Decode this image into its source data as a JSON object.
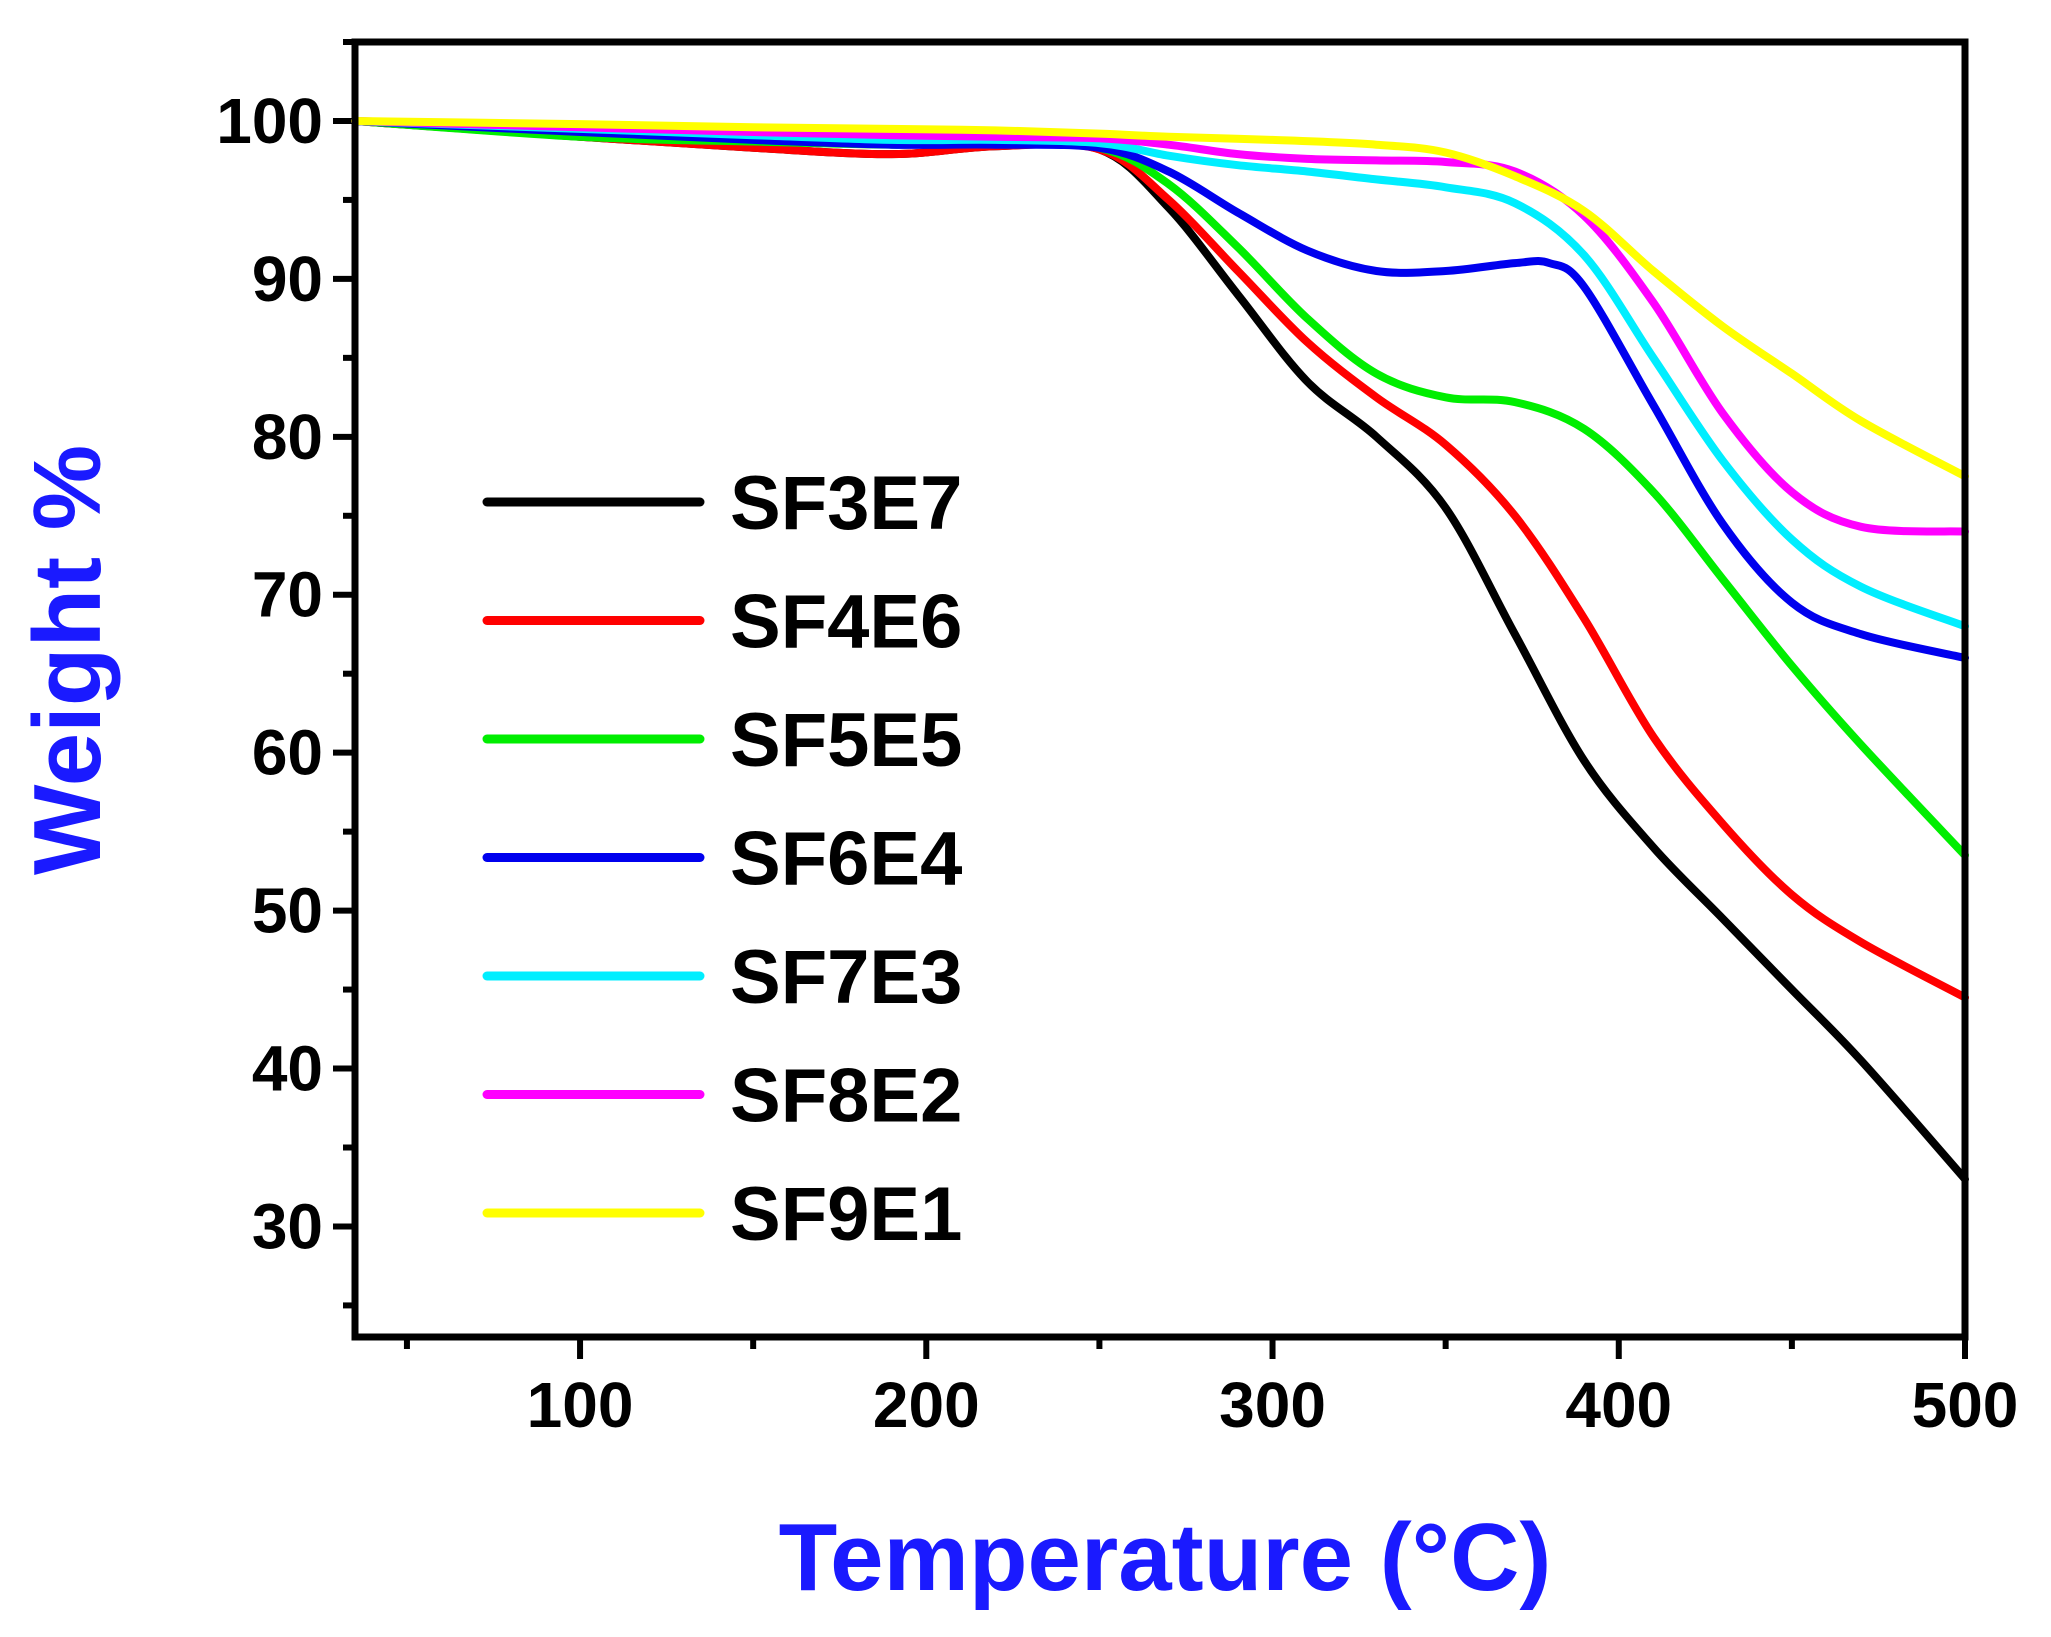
{
  "chart_data": {
    "type": "line",
    "xlabel": "Temperature (°C)",
    "ylabel": "Weight %",
    "xlim": [
      35,
      500
    ],
    "ylim": [
      23,
      105
    ],
    "xticks": [
      100,
      200,
      300,
      400,
      500
    ],
    "yticks": [
      30,
      40,
      50,
      60,
      70,
      80,
      90,
      100
    ],
    "x_minor_step": 50,
    "y_minor_step": 5,
    "grid": false,
    "legend_position": "left",
    "label_color": "#1a1aff",
    "series": [
      {
        "name": "SF3E7",
        "color": "#000000",
        "x": [
          35,
          100,
          150,
          190,
          220,
          250,
          270,
          290,
          310,
          330,
          350,
          370,
          390,
          410,
          430,
          450,
          470,
          500
        ],
        "y": [
          100,
          99,
          98.3,
          97.9,
          98.4,
          98.2,
          94.5,
          89,
          83.5,
          80,
          75.5,
          67.5,
          59.5,
          54,
          49.5,
          45,
          40.5,
          33
        ]
      },
      {
        "name": "SF4E6",
        "color": "#ff0000",
        "x": [
          35,
          100,
          150,
          190,
          220,
          250,
          270,
          290,
          310,
          330,
          350,
          370,
          390,
          410,
          430,
          450,
          470,
          500
        ],
        "y": [
          100,
          99,
          98.3,
          97.9,
          98.4,
          98.2,
          95,
          90.5,
          86,
          82.5,
          79.5,
          75,
          68.5,
          61,
          55.5,
          51,
          48,
          44.5
        ]
      },
      {
        "name": "SF5E5",
        "color": "#00ee00",
        "x": [
          35,
          100,
          150,
          190,
          220,
          250,
          270,
          290,
          310,
          330,
          350,
          370,
          390,
          410,
          430,
          450,
          470,
          500
        ],
        "y": [
          100,
          99,
          98.7,
          98.5,
          98.6,
          98.3,
          96,
          92,
          87.5,
          84,
          82.5,
          82.2,
          80.5,
          76.5,
          71,
          65.5,
          60.5,
          53.5
        ]
      },
      {
        "name": "SF6E4",
        "color": "#0000ee",
        "x": [
          35,
          100,
          150,
          190,
          220,
          250,
          270,
          290,
          310,
          330,
          350,
          370,
          380,
          390,
          410,
          430,
          450,
          470,
          500
        ],
        "y": [
          100,
          99.3,
          98.8,
          98.5,
          98.5,
          98.3,
          96.8,
          94.2,
          91.8,
          90.5,
          90.5,
          91,
          91,
          89.5,
          82,
          74.5,
          69.5,
          67.5,
          66
        ]
      },
      {
        "name": "SF7E3",
        "color": "#00eeff",
        "x": [
          35,
          100,
          150,
          190,
          220,
          250,
          270,
          290,
          310,
          330,
          350,
          370,
          390,
          410,
          430,
          450,
          470,
          500
        ],
        "y": [
          100,
          99.5,
          99.1,
          98.8,
          98.8,
          98.6,
          97.8,
          97.2,
          96.8,
          96.3,
          95.8,
          94.8,
          91.5,
          85,
          78.5,
          73.5,
          70.5,
          68
        ]
      },
      {
        "name": "SF8E2",
        "color": "#ff00ff",
        "x": [
          35,
          100,
          150,
          190,
          220,
          250,
          270,
          290,
          310,
          330,
          350,
          370,
          390,
          410,
          430,
          450,
          470,
          500
        ],
        "y": [
          100,
          99.6,
          99.3,
          99.1,
          99,
          98.9,
          98.5,
          97.9,
          97.6,
          97.5,
          97.4,
          96.8,
          94,
          88.5,
          81.5,
          76.5,
          74.3,
          74
        ]
      },
      {
        "name": "SF9E1",
        "color": "#ffff00",
        "x": [
          35,
          100,
          150,
          190,
          220,
          250,
          270,
          300,
          330,
          350,
          370,
          390,
          410,
          430,
          450,
          470,
          500
        ],
        "y": [
          100,
          99.8,
          99.6,
          99.5,
          99.4,
          99.2,
          99,
          98.8,
          98.5,
          98,
          96.5,
          94.3,
          90.5,
          87,
          84,
          81,
          77.5
        ]
      }
    ]
  }
}
